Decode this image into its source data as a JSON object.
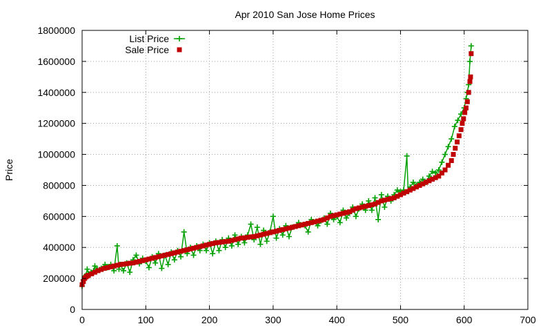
{
  "colors": {
    "list_price": "#00a000",
    "sale_price": "#c00000",
    "grid": "#a0a0a0",
    "axis": "#000000"
  },
  "chart_data": {
    "type": "scatter",
    "title": "Apr 2010 San Jose Home Prices",
    "xlabel": "",
    "ylabel": "Price",
    "xlim": [
      0,
      700
    ],
    "ylim": [
      0,
      1800000
    ],
    "x_ticks": [
      0,
      100,
      200,
      300,
      400,
      500,
      600,
      700
    ],
    "y_ticks": [
      0,
      200000,
      400000,
      600000,
      800000,
      1000000,
      1200000,
      1400000,
      1600000,
      1800000
    ],
    "grid": true,
    "legend_position": "top-left",
    "series": [
      {
        "name": "List Price",
        "style": "linespoints",
        "marker": "plus",
        "color": "#00a000",
        "points": [
          [
            0,
            150000
          ],
          [
            2,
            190000
          ],
          [
            4,
            215000
          ],
          [
            6,
            220000
          ],
          [
            8,
            260000
          ],
          [
            10,
            230000
          ],
          [
            14,
            240000
          ],
          [
            18,
            250000
          ],
          [
            20,
            280000
          ],
          [
            24,
            260000
          ],
          [
            30,
            265000
          ],
          [
            36,
            290000
          ],
          [
            40,
            270000
          ],
          [
            45,
            290000
          ],
          [
            50,
            250000
          ],
          [
            55,
            410000
          ],
          [
            58,
            260000
          ],
          [
            60,
            290000
          ],
          [
            65,
            250000
          ],
          [
            70,
            300000
          ],
          [
            75,
            240000
          ],
          [
            80,
            320000
          ],
          [
            85,
            350000
          ],
          [
            90,
            295000
          ],
          [
            95,
            330000
          ],
          [
            100,
            310000
          ],
          [
            105,
            270000
          ],
          [
            110,
            340000
          ],
          [
            115,
            300000
          ],
          [
            120,
            360000
          ],
          [
            125,
            265000
          ],
          [
            130,
            350000
          ],
          [
            135,
            290000
          ],
          [
            140,
            370000
          ],
          [
            145,
            320000
          ],
          [
            150,
            380000
          ],
          [
            155,
            340000
          ],
          [
            160,
            500000
          ],
          [
            165,
            360000
          ],
          [
            170,
            400000
          ],
          [
            175,
            350000
          ],
          [
            180,
            410000
          ],
          [
            185,
            380000
          ],
          [
            190,
            420000
          ],
          [
            195,
            380000
          ],
          [
            200,
            430000
          ],
          [
            205,
            360000
          ],
          [
            210,
            440000
          ],
          [
            215,
            380000
          ],
          [
            220,
            450000
          ],
          [
            225,
            400000
          ],
          [
            230,
            460000
          ],
          [
            235,
            410000
          ],
          [
            240,
            480000
          ],
          [
            245,
            420000
          ],
          [
            250,
            470000
          ],
          [
            255,
            430000
          ],
          [
            260,
            480000
          ],
          [
            265,
            550000
          ],
          [
            270,
            450000
          ],
          [
            275,
            530000
          ],
          [
            280,
            420000
          ],
          [
            285,
            510000
          ],
          [
            290,
            440000
          ],
          [
            295,
            500000
          ],
          [
            300,
            600000
          ],
          [
            305,
            460000
          ],
          [
            310,
            520000
          ],
          [
            315,
            480000
          ],
          [
            320,
            540000
          ],
          [
            325,
            470000
          ],
          [
            330,
            530000
          ],
          [
            340,
            560000
          ],
          [
            350,
            540000
          ],
          [
            355,
            500000
          ],
          [
            360,
            580000
          ],
          [
            370,
            540000
          ],
          [
            375,
            570000
          ],
          [
            380,
            590000
          ],
          [
            385,
            550000
          ],
          [
            390,
            620000
          ],
          [
            395,
            580000
          ],
          [
            400,
            600000
          ],
          [
            405,
            560000
          ],
          [
            410,
            640000
          ],
          [
            415,
            590000
          ],
          [
            420,
            620000
          ],
          [
            425,
            660000
          ],
          [
            430,
            600000
          ],
          [
            435,
            650000
          ],
          [
            440,
            680000
          ],
          [
            445,
            640000
          ],
          [
            450,
            700000
          ],
          [
            455,
            640000
          ],
          [
            460,
            720000
          ],
          [
            465,
            580000
          ],
          [
            470,
            740000
          ],
          [
            475,
            660000
          ],
          [
            480,
            730000
          ],
          [
            485,
            700000
          ],
          [
            490,
            740000
          ],
          [
            495,
            770000
          ],
          [
            500,
            760000
          ],
          [
            505,
            770000
          ],
          [
            510,
            990000
          ],
          [
            512,
            760000
          ],
          [
            515,
            790000
          ],
          [
            520,
            820000
          ],
          [
            525,
            800000
          ],
          [
            530,
            820000
          ],
          [
            535,
            840000
          ],
          [
            540,
            820000
          ],
          [
            545,
            860000
          ],
          [
            550,
            890000
          ],
          [
            555,
            880000
          ],
          [
            560,
            900000
          ],
          [
            565,
            950000
          ],
          [
            570,
            1000000
          ],
          [
            575,
            1050000
          ],
          [
            580,
            1100000
          ],
          [
            585,
            1180000
          ],
          [
            590,
            1220000
          ],
          [
            595,
            1260000
          ],
          [
            600,
            1300000
          ],
          [
            603,
            1360000
          ],
          [
            605,
            1400000
          ],
          [
            607,
            1450000
          ],
          [
            609,
            1600000
          ],
          [
            611,
            1700000
          ]
        ]
      },
      {
        "name": "Sale Price",
        "style": "points",
        "marker": "square",
        "color": "#c00000",
        "points": [
          [
            0,
            160000
          ],
          [
            2,
            180000
          ],
          [
            4,
            200000
          ],
          [
            6,
            210000
          ],
          [
            8,
            215000
          ],
          [
            10,
            220000
          ],
          [
            15,
            230000
          ],
          [
            20,
            240000
          ],
          [
            25,
            250000
          ],
          [
            30,
            258000
          ],
          [
            35,
            265000
          ],
          [
            40,
            270000
          ],
          [
            45,
            275000
          ],
          [
            50,
            280000
          ],
          [
            55,
            285000
          ],
          [
            60,
            290000
          ],
          [
            65,
            292000
          ],
          [
            70,
            295000
          ],
          [
            75,
            298000
          ],
          [
            80,
            300000
          ],
          [
            85,
            305000
          ],
          [
            90,
            310000
          ],
          [
            95,
            315000
          ],
          [
            100,
            320000
          ],
          [
            105,
            325000
          ],
          [
            110,
            330000
          ],
          [
            115,
            335000
          ],
          [
            120,
            340000
          ],
          [
            125,
            345000
          ],
          [
            130,
            350000
          ],
          [
            135,
            355000
          ],
          [
            140,
            360000
          ],
          [
            145,
            365000
          ],
          [
            150,
            370000
          ],
          [
            155,
            375000
          ],
          [
            160,
            380000
          ],
          [
            165,
            385000
          ],
          [
            170,
            390000
          ],
          [
            175,
            395000
          ],
          [
            180,
            400000
          ],
          [
            185,
            405000
          ],
          [
            190,
            410000
          ],
          [
            195,
            415000
          ],
          [
            200,
            420000
          ],
          [
            205,
            425000
          ],
          [
            210,
            430000
          ],
          [
            215,
            432000
          ],
          [
            220,
            435000
          ],
          [
            225,
            438000
          ],
          [
            230,
            440000
          ],
          [
            235,
            445000
          ],
          [
            240,
            450000
          ],
          [
            245,
            455000
          ],
          [
            250,
            460000
          ],
          [
            255,
            462000
          ],
          [
            260,
            465000
          ],
          [
            265,
            468000
          ],
          [
            270,
            470000
          ],
          [
            275,
            475000
          ],
          [
            280,
            480000
          ],
          [
            285,
            485000
          ],
          [
            290,
            490000
          ],
          [
            295,
            495000
          ],
          [
            300,
            500000
          ],
          [
            305,
            505000
          ],
          [
            310,
            510000
          ],
          [
            315,
            515000
          ],
          [
            320,
            520000
          ],
          [
            325,
            525000
          ],
          [
            330,
            530000
          ],
          [
            335,
            535000
          ],
          [
            340,
            540000
          ],
          [
            345,
            545000
          ],
          [
            350,
            550000
          ],
          [
            355,
            555000
          ],
          [
            360,
            560000
          ],
          [
            365,
            565000
          ],
          [
            370,
            570000
          ],
          [
            375,
            575000
          ],
          [
            380,
            580000
          ],
          [
            385,
            590000
          ],
          [
            390,
            600000
          ],
          [
            395,
            605000
          ],
          [
            400,
            610000
          ],
          [
            405,
            615000
          ],
          [
            410,
            620000
          ],
          [
            415,
            625000
          ],
          [
            420,
            630000
          ],
          [
            425,
            640000
          ],
          [
            430,
            650000
          ],
          [
            435,
            655000
          ],
          [
            440,
            660000
          ],
          [
            445,
            665000
          ],
          [
            450,
            670000
          ],
          [
            455,
            675000
          ],
          [
            460,
            680000
          ],
          [
            465,
            690000
          ],
          [
            470,
            700000
          ],
          [
            475,
            705000
          ],
          [
            480,
            710000
          ],
          [
            485,
            715000
          ],
          [
            490,
            720000
          ],
          [
            495,
            730000
          ],
          [
            500,
            740000
          ],
          [
            505,
            750000
          ],
          [
            510,
            760000
          ],
          [
            515,
            770000
          ],
          [
            520,
            780000
          ],
          [
            525,
            790000
          ],
          [
            530,
            800000
          ],
          [
            535,
            810000
          ],
          [
            540,
            820000
          ],
          [
            545,
            830000
          ],
          [
            550,
            840000
          ],
          [
            555,
            850000
          ],
          [
            560,
            860000
          ],
          [
            565,
            880000
          ],
          [
            570,
            900000
          ],
          [
            575,
            930000
          ],
          [
            580,
            960000
          ],
          [
            583,
            1000000
          ],
          [
            586,
            1040000
          ],
          [
            589,
            1080000
          ],
          [
            592,
            1120000
          ],
          [
            595,
            1160000
          ],
          [
            597,
            1200000
          ],
          [
            599,
            1230000
          ],
          [
            601,
            1270000
          ],
          [
            603,
            1300000
          ],
          [
            605,
            1340000
          ],
          [
            607,
            1400000
          ],
          [
            609,
            1470000
          ],
          [
            610,
            1500000
          ],
          [
            611,
            1650000
          ]
        ]
      }
    ]
  }
}
